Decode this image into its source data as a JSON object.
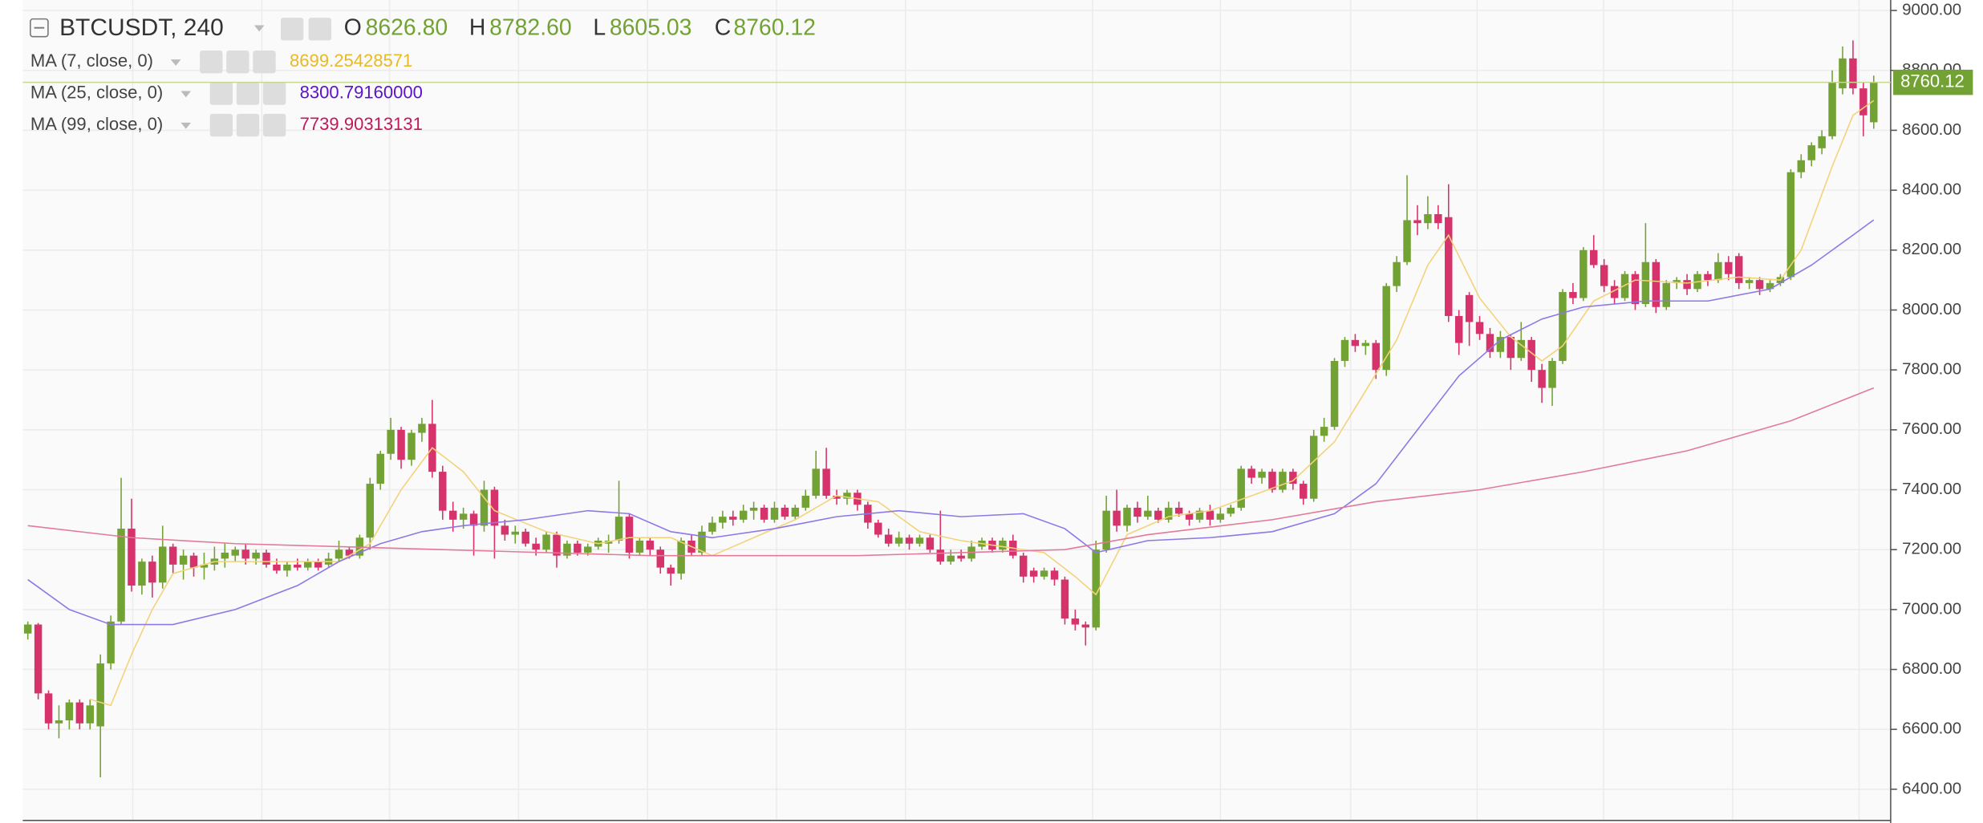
{
  "chart_data": {
    "type": "candlestick",
    "symbol": "BTCUSDT, 240",
    "ohlc_letters": [
      "O",
      "H",
      "L",
      "C"
    ],
    "ohlc_labels": [
      "8626.80",
      "8782.60",
      "8605.03",
      "8760.12"
    ],
    "up_color": "#72a233",
    "down_color": "#d6336c",
    "grid": true,
    "ylim": [
      6300,
      9035
    ],
    "yticks": [
      {
        "value": 6400,
        "label": "6400.00"
      },
      {
        "value": 6600,
        "label": "6600.00"
      },
      {
        "value": 6800,
        "label": "6800.00"
      },
      {
        "value": 7000,
        "label": "7000.00"
      },
      {
        "value": 7200,
        "label": "7200.00"
      },
      {
        "value": 7400,
        "label": "7400.00"
      },
      {
        "value": 7600,
        "label": "7600.00"
      },
      {
        "value": 7800,
        "label": "7800.00"
      },
      {
        "value": 8000,
        "label": "8000.00"
      },
      {
        "value": 8200,
        "label": "8200.00"
      },
      {
        "value": 8400,
        "label": "8400.00"
      },
      {
        "value": 8600,
        "label": "8600.00"
      },
      {
        "value": 8800,
        "label": "8800.00"
      },
      {
        "value": 9000,
        "label": "9000.00"
      }
    ],
    "ohlc": [
      [
        6920,
        6960,
        6900,
        6950
      ],
      [
        6950,
        6955,
        6700,
        6720
      ],
      [
        6720,
        6730,
        6600,
        6620
      ],
      [
        6620,
        6680,
        6570,
        6630
      ],
      [
        6630,
        6700,
        6600,
        6690
      ],
      [
        6690,
        6700,
        6600,
        6620
      ],
      [
        6620,
        6700,
        6600,
        6680
      ],
      [
        6610,
        6850,
        6440,
        6820
      ],
      [
        6820,
        6980,
        6800,
        6960
      ],
      [
        6960,
        7440,
        6950,
        7270
      ],
      [
        7270,
        7370,
        7060,
        7080
      ],
      [
        7080,
        7170,
        7050,
        7160
      ],
      [
        7160,
        7180,
        7040,
        7090
      ],
      [
        7090,
        7280,
        7070,
        7210
      ],
      [
        7210,
        7220,
        7120,
        7150
      ],
      [
        7150,
        7200,
        7100,
        7180
      ],
      [
        7180,
        7190,
        7110,
        7140
      ],
      [
        7140,
        7190,
        7100,
        7150
      ],
      [
        7150,
        7210,
        7130,
        7170
      ],
      [
        7170,
        7220,
        7140,
        7190
      ],
      [
        7180,
        7210,
        7160,
        7200
      ],
      [
        7200,
        7220,
        7150,
        7170
      ],
      [
        7170,
        7200,
        7150,
        7190
      ],
      [
        7190,
        7200,
        7140,
        7150
      ],
      [
        7150,
        7170,
        7120,
        7130
      ],
      [
        7130,
        7160,
        7110,
        7150
      ],
      [
        7150,
        7170,
        7130,
        7140
      ],
      [
        7140,
        7170,
        7130,
        7160
      ],
      [
        7160,
        7170,
        7130,
        7140
      ],
      [
        7150,
        7190,
        7140,
        7170
      ],
      [
        7170,
        7230,
        7160,
        7200
      ],
      [
        7200,
        7210,
        7170,
        7180
      ],
      [
        7180,
        7250,
        7170,
        7240
      ],
      [
        7240,
        7440,
        7200,
        7420
      ],
      [
        7420,
        7530,
        7400,
        7520
      ],
      [
        7520,
        7640,
        7500,
        7600
      ],
      [
        7600,
        7610,
        7470,
        7500
      ],
      [
        7500,
        7600,
        7480,
        7590
      ],
      [
        7590,
        7640,
        7560,
        7620
      ],
      [
        7620,
        7700,
        7440,
        7460
      ],
      [
        7460,
        7480,
        7300,
        7330
      ],
      [
        7330,
        7360,
        7260,
        7300
      ],
      [
        7300,
        7340,
        7270,
        7320
      ],
      [
        7320,
        7330,
        7180,
        7280
      ],
      [
        7280,
        7430,
        7260,
        7400
      ],
      [
        7400,
        7410,
        7170,
        7280
      ],
      [
        7280,
        7300,
        7230,
        7250
      ],
      [
        7250,
        7280,
        7220,
        7260
      ],
      [
        7260,
        7270,
        7210,
        7220
      ],
      [
        7220,
        7240,
        7180,
        7200
      ],
      [
        7200,
        7260,
        7190,
        7250
      ],
      [
        7250,
        7260,
        7140,
        7180
      ],
      [
        7180,
        7230,
        7170,
        7220
      ],
      [
        7220,
        7230,
        7180,
        7190
      ],
      [
        7190,
        7220,
        7180,
        7210
      ],
      [
        7210,
        7240,
        7200,
        7230
      ],
      [
        7220,
        7250,
        7190,
        7230
      ],
      [
        7230,
        7430,
        7220,
        7310
      ],
      [
        7310,
        7320,
        7170,
        7190
      ],
      [
        7190,
        7240,
        7180,
        7230
      ],
      [
        7230,
        7240,
        7180,
        7200
      ],
      [
        7200,
        7210,
        7120,
        7140
      ],
      [
        7140,
        7150,
        7080,
        7120
      ],
      [
        7120,
        7240,
        7100,
        7230
      ],
      [
        7230,
        7250,
        7180,
        7190
      ],
      [
        7190,
        7280,
        7180,
        7260
      ],
      [
        7260,
        7310,
        7250,
        7290
      ],
      [
        7290,
        7330,
        7270,
        7310
      ],
      [
        7310,
        7330,
        7280,
        7300
      ],
      [
        7300,
        7350,
        7290,
        7330
      ],
      [
        7330,
        7360,
        7300,
        7340
      ],
      [
        7340,
        7350,
        7290,
        7300
      ],
      [
        7300,
        7360,
        7290,
        7340
      ],
      [
        7340,
        7350,
        7300,
        7310
      ],
      [
        7310,
        7350,
        7300,
        7340
      ],
      [
        7340,
        7400,
        7330,
        7380
      ],
      [
        7380,
        7530,
        7370,
        7470
      ],
      [
        7470,
        7540,
        7370,
        7380
      ],
      [
        7380,
        7400,
        7350,
        7370
      ],
      [
        7370,
        7400,
        7350,
        7390
      ],
      [
        7390,
        7400,
        7330,
        7350
      ],
      [
        7350,
        7360,
        7270,
        7290
      ],
      [
        7290,
        7300,
        7240,
        7250
      ],
      [
        7250,
        7270,
        7210,
        7220
      ],
      [
        7220,
        7260,
        7210,
        7240
      ],
      [
        7240,
        7250,
        7200,
        7220
      ],
      [
        7220,
        7250,
        7210,
        7240
      ],
      [
        7240,
        7250,
        7190,
        7200
      ],
      [
        7200,
        7330,
        7150,
        7160
      ],
      [
        7160,
        7200,
        7150,
        7180
      ],
      [
        7180,
        7200,
        7160,
        7170
      ],
      [
        7170,
        7230,
        7160,
        7210
      ],
      [
        7210,
        7240,
        7200,
        7230
      ],
      [
        7230,
        7240,
        7190,
        7200
      ],
      [
        7200,
        7240,
        7190,
        7230
      ],
      [
        7230,
        7250,
        7170,
        7180
      ],
      [
        7180,
        7190,
        7090,
        7110
      ],
      [
        7130,
        7140,
        7090,
        7110
      ],
      [
        7110,
        7140,
        7100,
        7130
      ],
      [
        7130,
        7140,
        7080,
        7100
      ],
      [
        7100,
        7110,
        6950,
        6970
      ],
      [
        6970,
        7000,
        6930,
        6950
      ],
      [
        6950,
        6960,
        6880,
        6940
      ],
      [
        6940,
        7230,
        6930,
        7200
      ],
      [
        7200,
        7380,
        7190,
        7330
      ],
      [
        7330,
        7400,
        7260,
        7280
      ],
      [
        7280,
        7350,
        7260,
        7340
      ],
      [
        7340,
        7360,
        7290,
        7310
      ],
      [
        7310,
        7380,
        7300,
        7330
      ],
      [
        7330,
        7340,
        7290,
        7300
      ],
      [
        7300,
        7360,
        7290,
        7340
      ],
      [
        7340,
        7360,
        7310,
        7320
      ],
      [
        7320,
        7330,
        7280,
        7300
      ],
      [
        7300,
        7340,
        7290,
        7330
      ],
      [
        7330,
        7350,
        7280,
        7300
      ],
      [
        7300,
        7340,
        7290,
        7320
      ],
      [
        7320,
        7350,
        7310,
        7340
      ],
      [
        7340,
        7480,
        7330,
        7470
      ],
      [
        7470,
        7480,
        7420,
        7440
      ],
      [
        7440,
        7470,
        7420,
        7460
      ],
      [
        7460,
        7470,
        7390,
        7400
      ],
      [
        7400,
        7470,
        7390,
        7460
      ],
      [
        7460,
        7470,
        7400,
        7420
      ],
      [
        7420,
        7430,
        7350,
        7370
      ],
      [
        7370,
        7600,
        7360,
        7580
      ],
      [
        7580,
        7640,
        7560,
        7610
      ],
      [
        7610,
        7840,
        7600,
        7830
      ],
      [
        7830,
        7910,
        7810,
        7900
      ],
      [
        7900,
        7920,
        7860,
        7880
      ],
      [
        7880,
        7900,
        7850,
        7890
      ],
      [
        7890,
        7900,
        7770,
        7800
      ],
      [
        7800,
        8090,
        7780,
        8080
      ],
      [
        8080,
        8180,
        8060,
        8160
      ],
      [
        8160,
        8450,
        8150,
        8300
      ],
      [
        8300,
        8350,
        8250,
        8290
      ],
      [
        8290,
        8380,
        8270,
        8320
      ],
      [
        8320,
        8350,
        8270,
        8290
      ],
      [
        8310,
        8420,
        7960,
        7980
      ],
      [
        7980,
        8000,
        7850,
        7890
      ],
      [
        8050,
        8060,
        7880,
        7960
      ],
      [
        7960,
        7980,
        7900,
        7920
      ],
      [
        7920,
        7940,
        7840,
        7860
      ],
      [
        7860,
        7930,
        7840,
        7910
      ],
      [
        7910,
        7920,
        7800,
        7840
      ],
      [
        7840,
        7960,
        7830,
        7900
      ],
      [
        7900,
        7910,
        7760,
        7800
      ],
      [
        7800,
        7820,
        7690,
        7740
      ],
      [
        7740,
        7840,
        7680,
        7830
      ],
      [
        7830,
        8070,
        7820,
        8060
      ],
      [
        8060,
        8090,
        8020,
        8040
      ],
      [
        8040,
        8210,
        8030,
        8200
      ],
      [
        8200,
        8250,
        8140,
        8150
      ],
      [
        8150,
        8170,
        8060,
        8080
      ],
      [
        8080,
        8100,
        8020,
        8040
      ],
      [
        8040,
        8130,
        8030,
        8120
      ],
      [
        8120,
        8130,
        8000,
        8020
      ],
      [
        8020,
        8290,
        8010,
        8160
      ],
      [
        8160,
        8170,
        7990,
        8010
      ],
      [
        8010,
        8100,
        8000,
        8090
      ],
      [
        8090,
        8110,
        8070,
        8100
      ],
      [
        8100,
        8120,
        8050,
        8070
      ],
      [
        8070,
        8130,
        8060,
        8120
      ],
      [
        8120,
        8130,
        8080,
        8100
      ],
      [
        8100,
        8190,
        8090,
        8160
      ],
      [
        8160,
        8180,
        8100,
        8120
      ],
      [
        8180,
        8190,
        8070,
        8090
      ],
      [
        8090,
        8110,
        8070,
        8100
      ],
      [
        8100,
        8110,
        8050,
        8070
      ],
      [
        8070,
        8100,
        8060,
        8090
      ],
      [
        8090,
        8120,
        8080,
        8110
      ],
      [
        8110,
        8470,
        8100,
        8460
      ],
      [
        8460,
        8520,
        8440,
        8500
      ],
      [
        8500,
        8560,
        8480,
        8550
      ],
      [
        8540,
        8600,
        8520,
        8580
      ],
      [
        8580,
        8800,
        8570,
        8760
      ],
      [
        8740,
        8880,
        8720,
        8840
      ],
      [
        8840,
        8900,
        8720,
        8740
      ],
      [
        8740,
        8760,
        8580,
        8650
      ],
      [
        8626.8,
        8782.6,
        8605.03,
        8760.12
      ]
    ],
    "series": [
      {
        "name": "MA (7, close, 0)",
        "color": "#e8b923",
        "line_color": "#f3d27a",
        "x": [
          6,
          8,
          10,
          12,
          14,
          18,
          24,
          30,
          33,
          36,
          39,
          42,
          45,
          50,
          55,
          58,
          62,
          66,
          70,
          74,
          78,
          82,
          86,
          90,
          94,
          98,
          101,
          103,
          106,
          110,
          114,
          118,
          122,
          126,
          129,
          132,
          135,
          137,
          140,
          143,
          146,
          148,
          151,
          155,
          160,
          165,
          169,
          171,
          174,
          176,
          178
        ],
        "values": [
          6700,
          6680,
          6850,
          7000,
          7120,
          7160,
          7160,
          7160,
          7220,
          7400,
          7540,
          7460,
          7330,
          7260,
          7220,
          7240,
          7240,
          7180,
          7240,
          7300,
          7380,
          7360,
          7260,
          7230,
          7210,
          7190,
          7110,
          7050,
          7250,
          7310,
          7330,
          7380,
          7430,
          7560,
          7730,
          7900,
          8150,
          8250,
          8040,
          7910,
          7830,
          7880,
          8030,
          8100,
          8090,
          8110,
          8100,
          8200,
          8480,
          8650,
          8699.25428571
        ],
        "value_labels": [
          null,
          null,
          null,
          null,
          null,
          null,
          null,
          null,
          null,
          null,
          null,
          null,
          null,
          null,
          null,
          null,
          null,
          null,
          null,
          null,
          null,
          null,
          null,
          null,
          null,
          null,
          null,
          null,
          null,
          null,
          null,
          null,
          null,
          null,
          null,
          null,
          null,
          null,
          null,
          null,
          null,
          null,
          null,
          null,
          null,
          null,
          null,
          null,
          null,
          null,
          "8699.25428571"
        ]
      },
      {
        "name": "MA (25, close, 0)",
        "color": "#5b12c9",
        "line_color": "#8e77e6",
        "x": [
          0,
          4,
          8,
          14,
          20,
          26,
          30,
          34,
          38,
          42,
          48,
          54,
          58,
          62,
          66,
          72,
          78,
          84,
          90,
          96,
          100,
          103,
          108,
          114,
          120,
          126,
          130,
          134,
          138,
          142,
          146,
          150,
          156,
          162,
          168,
          172,
          176,
          178
        ],
        "values": [
          7100,
          7000,
          6950,
          6950,
          7000,
          7080,
          7160,
          7220,
          7260,
          7280,
          7300,
          7330,
          7320,
          7260,
          7240,
          7270,
          7310,
          7330,
          7310,
          7320,
          7270,
          7190,
          7230,
          7240,
          7260,
          7320,
          7420,
          7600,
          7780,
          7900,
          7970,
          8010,
          8030,
          8030,
          8070,
          8150,
          8250,
          8300.7916
        ],
        "value_labels": [
          null,
          null,
          null,
          null,
          null,
          null,
          null,
          null,
          null,
          null,
          null,
          null,
          null,
          null,
          null,
          null,
          null,
          null,
          null,
          null,
          null,
          null,
          null,
          null,
          null,
          null,
          null,
          null,
          null,
          null,
          null,
          null,
          null,
          null,
          null,
          null,
          null,
          "8300.79160000"
        ]
      },
      {
        "name": "MA (99, close, 0)",
        "color": "#c2185b",
        "line_color": "#e27a98",
        "x": [
          0,
          10,
          20,
          30,
          40,
          60,
          80,
          100,
          108,
          120,
          130,
          140,
          150,
          160,
          170,
          178
        ],
        "values": [
          7280,
          7240,
          7220,
          7210,
          7200,
          7180,
          7180,
          7200,
          7250,
          7300,
          7360,
          7400,
          7460,
          7530,
          7630,
          7739.90313131
        ],
        "value_labels": [
          null,
          null,
          null,
          null,
          null,
          null,
          null,
          null,
          null,
          null,
          null,
          null,
          null,
          null,
          null,
          "7739.90313131"
        ]
      }
    ]
  }
}
